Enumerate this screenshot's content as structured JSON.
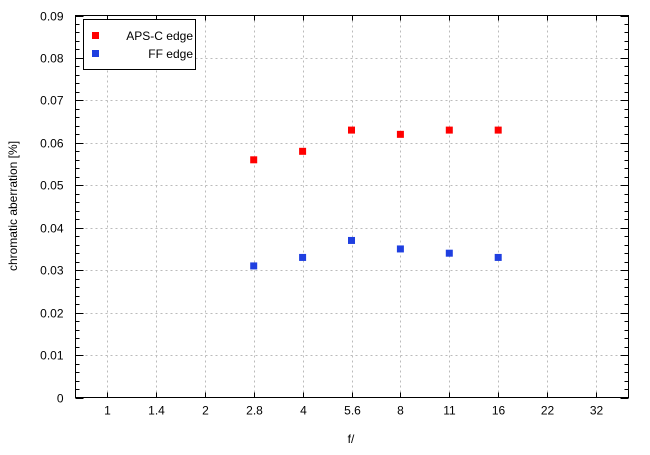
{
  "chart_data": {
    "type": "scatter",
    "title": "",
    "xlabel": "f/",
    "ylabel": "chromatic aberration [%]",
    "categories": [
      "1",
      "1.4",
      "2",
      "2.8",
      "4",
      "5.6",
      "8",
      "11",
      "16",
      "22",
      "32"
    ],
    "ylim": [
      0,
      0.09
    ],
    "yticks": [
      "0",
      "0.01",
      "0.02",
      "0.03",
      "0.04",
      "0.05",
      "0.06",
      "0.07",
      "0.08",
      "0.09"
    ],
    "grid": true,
    "legend_position": "top-left",
    "series": [
      {
        "name": "APS-C edge",
        "color": "#ff0000",
        "x": [
          "2.8",
          "4",
          "5.6",
          "8",
          "11",
          "16"
        ],
        "values": [
          0.056,
          0.058,
          0.063,
          0.062,
          0.063,
          0.063
        ]
      },
      {
        "name": "FF edge",
        "color": "#1f3fe0",
        "x": [
          "2.8",
          "4",
          "5.6",
          "8",
          "11",
          "16"
        ],
        "values": [
          0.031,
          0.033,
          0.037,
          0.035,
          0.034,
          0.033
        ]
      }
    ]
  }
}
